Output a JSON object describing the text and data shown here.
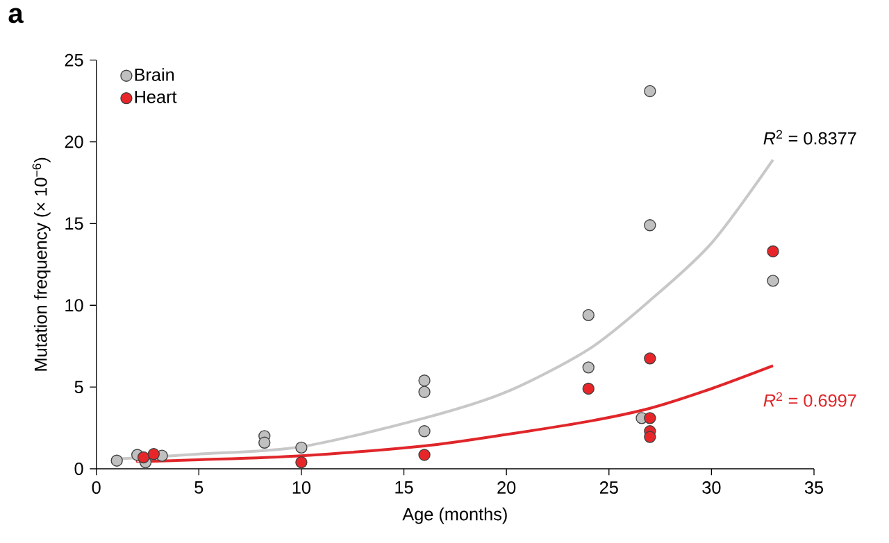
{
  "chart_data": {
    "type": "scatter",
    "title": "a",
    "xlabel": "Age (months)",
    "ylabel": "Mutation frequency (× 10$^{−6}$)",
    "xlim": [
      0,
      35
    ],
    "ylim": [
      0,
      25
    ],
    "xticks": [
      0,
      5,
      10,
      15,
      20,
      25,
      30,
      35
    ],
    "yticks": [
      0,
      5,
      10,
      15,
      20,
      25
    ],
    "legend": "top left",
    "grid": false,
    "series": [
      {
        "name": "Brain",
        "marker": "circle",
        "color": "#c0c0c0",
        "x": [
          1,
          2,
          2.4,
          3.2,
          8.2,
          8.2,
          10,
          16,
          16,
          16,
          24,
          24,
          26.6,
          27,
          27,
          33
        ],
        "values": [
          0.5,
          0.85,
          0.4,
          0.8,
          2.0,
          1.6,
          1.3,
          5.4,
          4.7,
          2.3,
          9.4,
          6.2,
          3.1,
          23.1,
          14.9,
          11.5
        ]
      },
      {
        "name": "Heart",
        "marker": "circle",
        "color": "#e8262a",
        "x": [
          2.3,
          2.8,
          10,
          16,
          24,
          27,
          27,
          27,
          27,
          33
        ],
        "values": [
          0.7,
          0.9,
          0.4,
          0.85,
          4.9,
          6.75,
          3.1,
          2.3,
          1.95,
          13.3
        ]
      },
      {
        "type": "line",
        "marker": "none",
        "color": "#c8c8c8",
        "x": [
          1,
          2.4,
          5,
          10,
          16,
          20,
          24,
          27,
          30,
          33
        ],
        "values": [
          0.6,
          0.7,
          0.9,
          1.35,
          3.1,
          4.7,
          7.3,
          10.3,
          13.8,
          18.9
        ]
      },
      {
        "type": "line",
        "marker": "none",
        "color": "#e0262a",
        "x": [
          2,
          2.4,
          5,
          10,
          16,
          20,
          24,
          27,
          30,
          33
        ],
        "values": [
          0.45,
          0.45,
          0.55,
          0.8,
          1.4,
          2.1,
          2.9,
          3.7,
          4.9,
          6.3
        ]
      }
    ],
    "annotations": [
      "*R*$^{2}$ = 0.8377",
      "*R*$^{2}$ = 0.6997"
    ]
  }
}
